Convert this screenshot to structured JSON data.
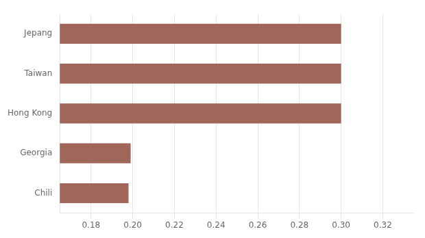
{
  "chart_data": {
    "type": "bar",
    "orientation": "horizontal",
    "categories": [
      "Chili",
      "Georgia",
      "Hong Kong",
      "Taiwan",
      "Jepang"
    ],
    "values": [
      0.198,
      0.199,
      0.3,
      0.3,
      0.3
    ],
    "color": "#a0665a",
    "xlim": [
      0.165,
      0.335
    ],
    "xticks": [
      0.18,
      {
        "value": 0.2,
        "label": "0.20"
      },
      0.22,
      0.24,
      0.26,
      0.28,
      {
        "value": 0.3,
        "label": "0.30"
      },
      0.32
    ],
    "grid": true
  }
}
